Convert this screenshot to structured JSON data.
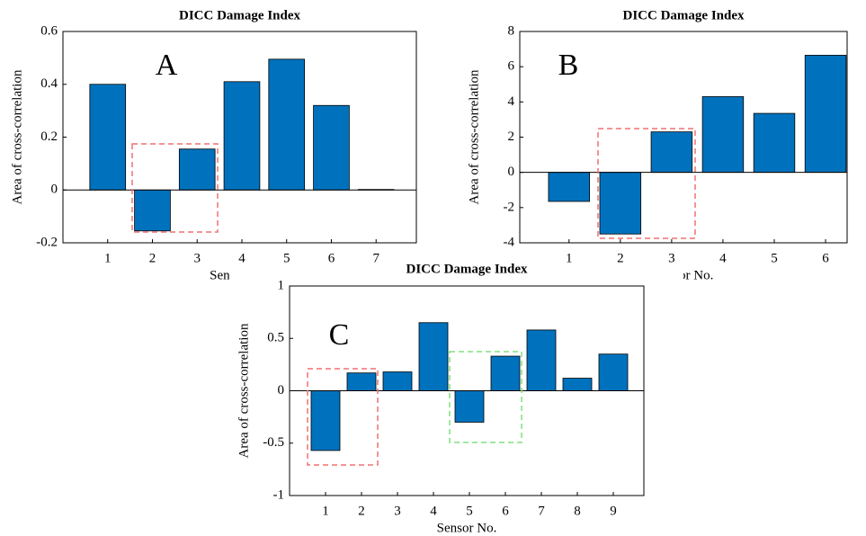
{
  "chart_data": [
    {
      "type": "bar",
      "title": "DICC Damage Index",
      "annotation": "A",
      "ylabel": "Area of cross-correlation",
      "xlabel": "Sensor No.",
      "x": [
        1,
        2,
        3,
        4,
        5,
        6,
        7
      ],
      "values": [
        0.4,
        -0.155,
        0.155,
        0.41,
        0.495,
        0.32,
        0.002
      ],
      "color": "#0072bd",
      "xlim": [
        0,
        7.9
      ],
      "xticks": [
        1,
        2,
        3,
        4,
        5,
        6,
        7
      ],
      "ylim": [
        -0.2,
        0.6
      ],
      "yticks": [
        -0.2,
        0,
        0.2,
        0.4,
        0.6
      ],
      "grid": false
    },
    {
      "type": "bar",
      "title": "DICC Damage Index",
      "annotation": "B",
      "ylabel": "Area of cross-correlation",
      "xlabel": "Sensor No.",
      "x": [
        1,
        2,
        3,
        4,
        5,
        6
      ],
      "values": [
        -1.65,
        -3.5,
        2.3,
        4.3,
        3.35,
        6.65
      ],
      "color": "#0072bd",
      "xlim": [
        0.04,
        6.42
      ],
      "xticks": [
        1,
        2,
        3,
        4,
        5,
        6
      ],
      "ylim": [
        -4,
        8
      ],
      "yticks": [
        -4,
        -2,
        0,
        2,
        4,
        6,
        8
      ],
      "grid": false
    },
    {
      "type": "bar",
      "title": "DICC Damage Index",
      "annotation": "C",
      "ylabel": "Area of cross-correlation",
      "xlabel": "Sensor No.",
      "x": [
        1,
        2,
        3,
        4,
        5,
        6,
        7,
        8,
        9
      ],
      "values": [
        -0.57,
        0.17,
        0.18,
        0.65,
        -0.3,
        0.33,
        0.58,
        0.12,
        0.35
      ],
      "color": "#0072bd",
      "xlim": [
        0,
        9.85
      ],
      "xticks": [
        1,
        2,
        3,
        4,
        5,
        6,
        7,
        8,
        9
      ],
      "ylim": [
        -1,
        1
      ],
      "yticks": [
        -1,
        -0.5,
        0,
        0.5,
        1
      ],
      "grid": false
    }
  ]
}
